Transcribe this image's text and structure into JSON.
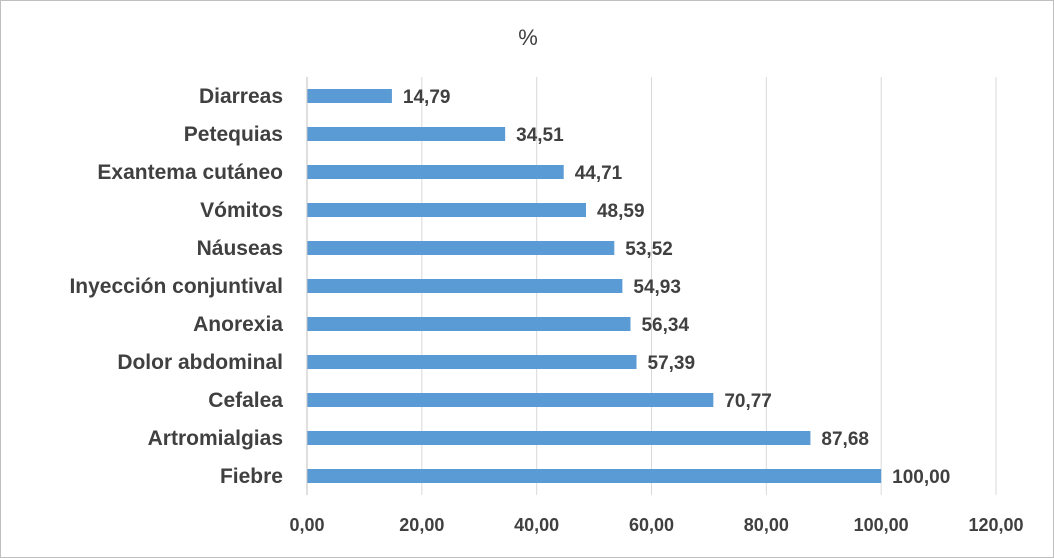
{
  "chart_data": {
    "type": "bar",
    "orientation": "horizontal",
    "title": "%",
    "categories": [
      "Diarreas",
      "Petequias",
      "Exantema cutáneo",
      "Vómitos",
      "Náuseas",
      "Inyección conjuntival",
      "Anorexia",
      "Dolor abdominal",
      "Cefalea",
      "Artromialgias",
      "Fiebre"
    ],
    "values": [
      14.79,
      34.51,
      44.71,
      48.59,
      53.52,
      54.93,
      56.34,
      57.39,
      70.77,
      87.68,
      100.0
    ],
    "data_labels": [
      "14,79",
      "34,51",
      "44,71",
      "48,59",
      "53,52",
      "54,93",
      "56,34",
      "57,39",
      "70,77",
      "87,68",
      "100,00"
    ],
    "x_ticks": [
      "0,00",
      "20,00",
      "40,00",
      "60,00",
      "80,00",
      "100,00",
      "120,00"
    ],
    "x_tick_values": [
      0,
      20,
      40,
      60,
      80,
      100,
      120
    ],
    "xlim": [
      0,
      120
    ],
    "grid": "vertical",
    "legend": "none",
    "bar_color": "#5b9bd5"
  }
}
